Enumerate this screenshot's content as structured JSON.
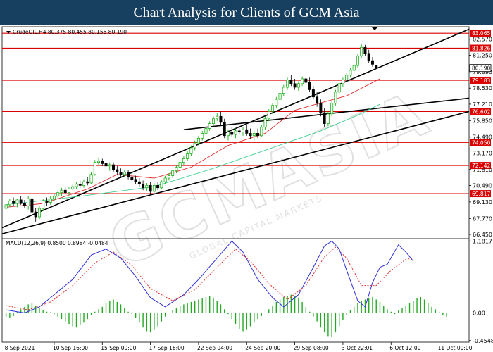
{
  "header": {
    "title": "Chart Analysis for Clients of GCM Asia"
  },
  "colors": {
    "header_bg": "#173f5f",
    "bull": "#00aa00",
    "bear": "#000000",
    "ma_red": "#e03030",
    "ma_green": "#40d090",
    "level": "#dd0000",
    "macd_line": "#3030dd",
    "macd_signal": "#e03030",
    "macd_hist": "#22aa22"
  },
  "watermark": {
    "brand": "GCMASIA",
    "tagline": "GLOBAL CAPITAL MARKETS"
  },
  "chart_data": [
    {
      "type": "candlestick",
      "symbol_info": "CrudeOIL,H4  80.375 80.455 80.155 80.190",
      "current_price": "80.190",
      "y_ticks": [
        "82.570",
        "81.250",
        "79.890",
        "78.530",
        "77.210",
        "75.850",
        "74.490",
        "73.170",
        "71.810",
        "70.490",
        "69.130",
        "67.770",
        "66.450"
      ],
      "ylim": [
        66.1,
        83.6
      ],
      "levels": [
        {
          "value": 83.065,
          "label": "83.065"
        },
        {
          "value": 81.826,
          "label": "81.826"
        },
        {
          "value": 79.183,
          "label": "79.183"
        },
        {
          "value": 76.602,
          "label": "76.602"
        },
        {
          "value": 74.05,
          "label": "74.050"
        },
        {
          "value": 72.142,
          "label": "72.142"
        },
        {
          "value": 69.817,
          "label": "69.817"
        }
      ],
      "trendlines": [
        {
          "from": [
            0,
            67.0
          ],
          "to": [
            124,
            83.4
          ]
        },
        {
          "from": [
            48,
            75.1
          ],
          "to": [
            124,
            77.7
          ]
        },
        {
          "from": [
            0,
            66.5
          ],
          "to": [
            124,
            76.6
          ]
        }
      ],
      "ohlc": [
        [
          68.6,
          69.1,
          68.4,
          68.9
        ],
        [
          68.9,
          69.4,
          68.7,
          69.2
        ],
        [
          69.2,
          69.5,
          68.8,
          69.0
        ],
        [
          69.0,
          69.4,
          68.7,
          69.3
        ],
        [
          69.3,
          69.6,
          68.9,
          69.0
        ],
        [
          69.0,
          69.3,
          68.6,
          68.8
        ],
        [
          68.8,
          69.6,
          68.5,
          69.4
        ],
        [
          69.4,
          69.8,
          68.1,
          68.3
        ],
        [
          68.3,
          68.6,
          67.5,
          67.9
        ],
        [
          67.9,
          68.8,
          67.7,
          68.6
        ],
        [
          68.6,
          69.4,
          68.4,
          69.2
        ],
        [
          69.2,
          69.5,
          68.8,
          69.1
        ],
        [
          69.1,
          69.6,
          68.9,
          69.4
        ],
        [
          69.4,
          69.8,
          69.2,
          69.6
        ],
        [
          69.6,
          70.1,
          69.4,
          69.9
        ],
        [
          69.9,
          70.3,
          69.6,
          70.1
        ],
        [
          70.1,
          70.4,
          69.7,
          69.9
        ],
        [
          69.9,
          70.4,
          69.7,
          70.2
        ],
        [
          70.2,
          70.6,
          70.0,
          70.4
        ],
        [
          70.4,
          70.8,
          70.2,
          70.6
        ],
        [
          70.6,
          70.9,
          70.3,
          70.5
        ],
        [
          70.5,
          71.0,
          70.3,
          70.8
        ],
        [
          70.8,
          71.2,
          70.5,
          70.7
        ],
        [
          70.7,
          71.6,
          70.6,
          71.4
        ],
        [
          71.4,
          72.6,
          71.3,
          72.4
        ],
        [
          72.4,
          72.8,
          72.1,
          72.5
        ],
        [
          72.5,
          72.7,
          72.1,
          72.3
        ],
        [
          72.3,
          72.6,
          71.9,
          72.1
        ],
        [
          72.1,
          72.4,
          71.7,
          72.2
        ],
        [
          72.2,
          72.4,
          71.6,
          71.8
        ],
        [
          71.8,
          72.1,
          71.4,
          71.6
        ],
        [
          71.6,
          71.9,
          71.1,
          71.4
        ],
        [
          71.4,
          71.8,
          71.2,
          71.6
        ],
        [
          71.6,
          71.8,
          71.0,
          71.2
        ],
        [
          71.2,
          71.5,
          70.8,
          71.0
        ],
        [
          71.0,
          71.3,
          70.6,
          70.8
        ],
        [
          70.8,
          71.1,
          70.4,
          70.6
        ],
        [
          70.6,
          70.9,
          70.1,
          70.3
        ],
        [
          70.3,
          70.7,
          70.0,
          70.5
        ],
        [
          70.5,
          70.8,
          69.8,
          70.0
        ],
        [
          70.0,
          70.7,
          69.9,
          70.5
        ],
        [
          70.5,
          70.8,
          70.1,
          70.3
        ],
        [
          70.3,
          70.9,
          70.2,
          70.8
        ],
        [
          70.8,
          71.3,
          70.6,
          71.1
        ],
        [
          71.1,
          71.5,
          70.9,
          71.3
        ],
        [
          71.3,
          71.8,
          71.1,
          71.7
        ],
        [
          71.7,
          72.2,
          71.5,
          72.0
        ],
        [
          72.0,
          72.6,
          71.8,
          72.4
        ],
        [
          72.4,
          72.9,
          72.2,
          72.7
        ],
        [
          72.7,
          73.3,
          72.5,
          73.1
        ],
        [
          73.1,
          73.8,
          72.9,
          73.6
        ],
        [
          73.6,
          74.2,
          73.4,
          74.0
        ],
        [
          74.0,
          74.6,
          73.8,
          74.4
        ],
        [
          74.4,
          75.0,
          74.2,
          74.8
        ],
        [
          74.8,
          75.4,
          74.6,
          75.2
        ],
        [
          75.2,
          75.8,
          75.0,
          75.6
        ],
        [
          75.6,
          76.2,
          75.4,
          76.0
        ],
        [
          76.0,
          76.5,
          75.8,
          76.2
        ],
        [
          76.2,
          76.6,
          75.5,
          75.7
        ],
        [
          75.7,
          76.0,
          74.4,
          74.6
        ],
        [
          74.6,
          75.1,
          74.2,
          74.9
        ],
        [
          74.9,
          75.3,
          74.5,
          74.7
        ],
        [
          74.7,
          75.2,
          74.4,
          75.0
        ],
        [
          75.0,
          75.4,
          74.7,
          74.9
        ],
        [
          74.9,
          75.3,
          74.6,
          75.1
        ],
        [
          75.1,
          75.5,
          74.6,
          74.8
        ],
        [
          74.8,
          75.2,
          74.3,
          74.6
        ],
        [
          74.6,
          75.0,
          74.2,
          74.8
        ],
        [
          74.8,
          75.2,
          74.4,
          74.6
        ],
        [
          74.6,
          75.5,
          74.5,
          75.3
        ],
        [
          75.3,
          76.2,
          75.1,
          76.0
        ],
        [
          76.0,
          76.8,
          75.8,
          76.6
        ],
        [
          76.6,
          77.3,
          76.4,
          77.1
        ],
        [
          77.1,
          77.8,
          76.9,
          77.6
        ],
        [
          77.6,
          78.3,
          77.4,
          78.1
        ],
        [
          78.1,
          78.8,
          77.9,
          78.6
        ],
        [
          78.6,
          79.4,
          78.4,
          79.2
        ],
        [
          79.2,
          79.6,
          78.7,
          78.9
        ],
        [
          78.9,
          79.3,
          78.4,
          78.6
        ],
        [
          78.6,
          79.1,
          78.3,
          78.9
        ],
        [
          78.9,
          79.5,
          78.7,
          79.3
        ],
        [
          79.3,
          79.7,
          78.8,
          79.0
        ],
        [
          79.0,
          79.4,
          78.2,
          78.4
        ],
        [
          78.4,
          78.7,
          77.6,
          77.8
        ],
        [
          77.8,
          78.2,
          77.0,
          77.3
        ],
        [
          77.3,
          77.6,
          76.2,
          76.5
        ],
        [
          76.5,
          76.9,
          75.3,
          75.6
        ],
        [
          75.6,
          76.6,
          75.4,
          76.4
        ],
        [
          76.4,
          77.5,
          76.2,
          77.3
        ],
        [
          77.3,
          78.4,
          77.1,
          78.2
        ],
        [
          78.2,
          79.1,
          78.0,
          78.9
        ],
        [
          78.9,
          79.4,
          78.6,
          79.2
        ],
        [
          79.2,
          79.8,
          79.0,
          79.6
        ],
        [
          79.6,
          80.2,
          79.4,
          80.0
        ],
        [
          80.0,
          80.6,
          79.8,
          80.4
        ],
        [
          80.4,
          81.4,
          80.2,
          81.2
        ],
        [
          81.2,
          82.2,
          81.0,
          81.9
        ],
        [
          81.9,
          82.1,
          81.2,
          81.4
        ],
        [
          81.4,
          81.7,
          80.6,
          80.8
        ],
        [
          80.8,
          81.1,
          80.3,
          80.5
        ],
        [
          80.375,
          80.455,
          80.155,
          80.19
        ]
      ],
      "ma_red": [
        [
          0,
          68.7
        ],
        [
          10,
          69.0
        ],
        [
          22,
          70.2
        ],
        [
          30,
          71.4
        ],
        [
          40,
          71.1
        ],
        [
          50,
          72.0
        ],
        [
          60,
          73.8
        ],
        [
          70,
          74.8
        ],
        [
          78,
          76.7
        ],
        [
          86,
          77.4
        ],
        [
          92,
          77.9
        ],
        [
          101,
          79.3
        ]
      ],
      "ma_green": [
        [
          0,
          68.9
        ],
        [
          20,
          69.6
        ],
        [
          40,
          70.4
        ],
        [
          55,
          71.8
        ],
        [
          70,
          73.4
        ],
        [
          85,
          75.0
        ],
        [
          95,
          76.3
        ],
        [
          101,
          77.2
        ]
      ],
      "x_labels": [
        {
          "i": 0,
          "label": "8 Sep 2021"
        },
        {
          "i": 13,
          "label": "10 Sep 16:00"
        },
        {
          "i": 26,
          "label": "15 Sep 00:00"
        },
        {
          "i": 39,
          "label": "17 Sep 16:00"
        },
        {
          "i": 52,
          "label": "22 Sep 04:00"
        },
        {
          "i": 65,
          "label": "24 Sep 20:00"
        },
        {
          "i": 78,
          "label": "29 Sep 08:00"
        },
        {
          "i": 91,
          "label": "3 Oct 22:01"
        },
        {
          "i": 104,
          "label": "6 Oct 12:00"
        },
        {
          "i": 117,
          "label": "11 Oct 00:00"
        }
      ]
    },
    {
      "type": "macd",
      "label": "MACD(12,26,9)  0.8500  0.8984  -0.0484",
      "y_ticks": [
        {
          "v": 1.1817,
          "label": "1.1817"
        },
        {
          "v": 0.0,
          "label": "0.00"
        },
        {
          "v": -0.4548,
          "label": "-0.4548"
        }
      ],
      "ylim": [
        -0.48,
        1.22
      ],
      "macd": [
        [
          0,
          0.05
        ],
        [
          5,
          0.0
        ],
        [
          9,
          0.1
        ],
        [
          14,
          0.35
        ],
        [
          18,
          0.55
        ],
        [
          23,
          0.95
        ],
        [
          27,
          1.05
        ],
        [
          31,
          0.9
        ],
        [
          35,
          0.6
        ],
        [
          39,
          0.25
        ],
        [
          43,
          0.1
        ],
        [
          48,
          0.3
        ],
        [
          52,
          0.55
        ],
        [
          57,
          0.9
        ],
        [
          61,
          1.18
        ],
        [
          64,
          1.0
        ],
        [
          68,
          0.55
        ],
        [
          72,
          0.25
        ],
        [
          75,
          0.1
        ],
        [
          79,
          0.3
        ],
        [
          83,
          0.75
        ],
        [
          86,
          1.1
        ],
        [
          88,
          1.18
        ],
        [
          90,
          1.05
        ],
        [
          92,
          0.7
        ],
        [
          95,
          0.2
        ],
        [
          97,
          0.1
        ],
        [
          99,
          0.5
        ],
        [
          101,
          0.75
        ],
        [
          103,
          0.8
        ],
        [
          106,
          1.12
        ],
        [
          108,
          1.0
        ],
        [
          110,
          0.85
        ]
      ],
      "signal": [
        [
          0,
          0.12
        ],
        [
          6,
          0.05
        ],
        [
          12,
          0.18
        ],
        [
          18,
          0.45
        ],
        [
          24,
          0.82
        ],
        [
          29,
          1.0
        ],
        [
          34,
          0.78
        ],
        [
          39,
          0.4
        ],
        [
          45,
          0.2
        ],
        [
          51,
          0.38
        ],
        [
          57,
          0.75
        ],
        [
          62,
          1.05
        ],
        [
          66,
          0.85
        ],
        [
          71,
          0.48
        ],
        [
          76,
          0.22
        ],
        [
          81,
          0.45
        ],
        [
          86,
          0.92
        ],
        [
          89,
          1.08
        ],
        [
          92,
          0.9
        ],
        [
          96,
          0.45
        ],
        [
          100,
          0.45
        ],
        [
          104,
          0.7
        ],
        [
          108,
          0.88
        ],
        [
          110,
          0.9
        ]
      ],
      "hist": [
        -0.06,
        -0.08,
        -0.05,
        0.02,
        0.06,
        0.1,
        0.14,
        0.16,
        0.12,
        0.08,
        0.04,
        0.02,
        0.01,
        -0.02,
        -0.06,
        -0.1,
        -0.14,
        -0.18,
        -0.22,
        -0.24,
        -0.2,
        -0.16,
        -0.1,
        -0.04,
        0.02,
        0.06,
        0.1,
        0.16,
        0.2,
        0.22,
        0.18,
        0.14,
        0.08,
        0.02,
        -0.02,
        -0.08,
        -0.16,
        -0.24,
        -0.3,
        -0.32,
        -0.28,
        -0.22,
        -0.14,
        -0.06,
        0.0,
        0.04,
        0.08,
        0.12,
        0.14,
        0.16,
        0.18,
        0.2,
        0.22,
        0.24,
        0.26,
        0.28,
        0.25,
        0.2,
        0.14,
        0.06,
        -0.02,
        -0.1,
        -0.18,
        -0.26,
        -0.3,
        -0.28,
        -0.22,
        -0.16,
        -0.1,
        -0.05,
        0.0,
        0.06,
        0.12,
        0.18,
        0.22,
        0.26,
        0.28,
        0.3,
        0.28,
        0.24,
        0.18,
        0.1,
        0.02,
        -0.06,
        -0.14,
        -0.24,
        -0.32,
        -0.38,
        -0.4,
        -0.32,
        -0.22,
        -0.12,
        -0.04,
        0.04,
        0.1,
        0.16,
        0.2,
        0.22,
        0.24,
        0.26,
        0.22,
        0.18,
        0.12,
        0.06,
        0.02,
        -0.02,
        0.04,
        0.08,
        0.12,
        0.16,
        0.2,
        0.24,
        0.26,
        0.22,
        0.16,
        0.1,
        0.06,
        0.02,
        -0.04,
        -0.06
      ]
    }
  ]
}
